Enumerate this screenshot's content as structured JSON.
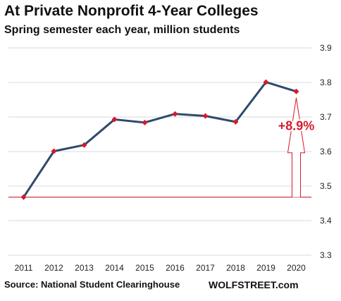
{
  "header": {
    "title": "At Private Nonprofit 4-Year Colleges",
    "subtitle": "Spring semester each year, million students"
  },
  "footer": {
    "source": "Source: National Student Clearinghouse",
    "brand": "WOLFSTREET.com"
  },
  "colors": {
    "line": "#2e4a6b",
    "marker": "#d7192a",
    "reference": "#c0282d",
    "annotation": "#d7192a",
    "grid": "#d9d9d9"
  },
  "chart_data": {
    "type": "line",
    "title": "At Private Nonprofit 4-Year Colleges",
    "subtitle": "Spring semester each year, million students",
    "xlabel": "",
    "ylabel": "",
    "categories": [
      "2011",
      "2012",
      "2013",
      "2014",
      "2015",
      "2016",
      "2017",
      "2018",
      "2019",
      "2020"
    ],
    "values": [
      3.468,
      3.601,
      3.619,
      3.693,
      3.684,
      3.709,
      3.703,
      3.686,
      3.801,
      3.774
    ],
    "ylim": [
      3.3,
      3.9
    ],
    "yticks": [
      "3.3",
      "3.4",
      "3.5",
      "3.6",
      "3.7",
      "3.8",
      "3.9"
    ],
    "grid": "horizontal",
    "reference_line": 3.468,
    "annotation": {
      "text": "+8.9%",
      "from": 3.468,
      "to": 3.774
    }
  }
}
